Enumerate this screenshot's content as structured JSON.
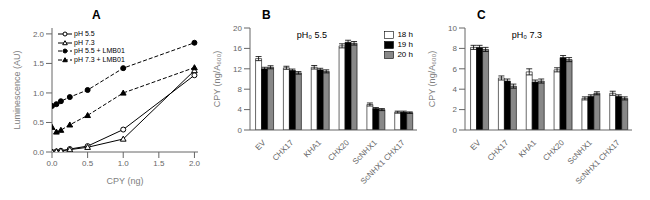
{
  "chart_data": [
    {
      "type": "line",
      "title": "A",
      "xlabel": "CPY (ng)",
      "ylabel": "Luminescence (AU)",
      "xlim": [
        0,
        2.05
      ],
      "ylim": [
        0,
        2.1
      ],
      "xticks": [
        {
          "value": 0,
          "label": "0.0"
        },
        0.5,
        {
          "value": 1,
          "label": "1.0"
        },
        1.5,
        {
          "value": 2,
          "label": "2.0"
        }
      ],
      "yticks": [
        {
          "value": 0,
          "label": "0.0"
        },
        0.5,
        {
          "value": 1,
          "label": "1.0"
        },
        1.5,
        {
          "value": 2,
          "label": "2.0"
        }
      ],
      "grid": false,
      "legend": "upper left",
      "x": [
        0.0,
        0.062,
        0.125,
        0.25,
        0.5,
        1.0,
        2.0
      ],
      "series": [
        {
          "name": "pH 5.5",
          "color": "black",
          "marker": "open_circle",
          "line_style": "solid",
          "values": [
            0.0,
            0.01,
            0.02,
            0.05,
            0.1,
            0.38,
            1.3
          ]
        },
        {
          "name": "pH 7.3",
          "color": "black",
          "marker": "open_triangle",
          "line_style": "solid",
          "values": [
            0.0,
            0.01,
            0.02,
            0.04,
            0.08,
            0.22,
            1.38
          ]
        },
        {
          "name": "pH 5.5 + LMB01",
          "color": "black",
          "marker": "filled_circle",
          "line_style": "dashed",
          "values": [
            0.78,
            0.81,
            0.86,
            0.93,
            1.05,
            1.42,
            1.85
          ]
        },
        {
          "name": "pH 7.3 + LMB01",
          "color": "black",
          "marker": "filled_triangle",
          "line_style": "dashed",
          "values": [
            0.42,
            0.34,
            0.37,
            0.46,
            0.62,
            1.0,
            1.43
          ]
        }
      ]
    },
    {
      "type": "bar",
      "title": "B",
      "annotations": [
        "pH₀ 5.5"
      ],
      "ylabel": "CPY (ng/A₆₀₀)",
      "ylim": [
        0,
        20
      ],
      "yticks": [
        0,
        4,
        8,
        12,
        16,
        20
      ],
      "grid": false,
      "legend": "upper right",
      "categories": [
        "EV",
        "CHX17",
        "KHA1",
        "CHX20",
        "ScNHX1",
        "ScNHX1 CHX17"
      ],
      "series": [
        {
          "name": "18 h",
          "color": "white",
          "values": [
            14.0,
            12.2,
            12.3,
            16.5,
            5.0,
            3.5
          ],
          "errors": [
            0.4,
            0.3,
            0.35,
            0.4,
            0.3,
            0.2
          ]
        },
        {
          "name": "19 h",
          "color": "black",
          "values": [
            12.0,
            11.7,
            11.8,
            17.2,
            4.2,
            3.5
          ],
          "errors": [
            0.3,
            0.25,
            0.3,
            0.4,
            0.2,
            0.2
          ]
        },
        {
          "name": "20 h",
          "color": "#888888",
          "values": [
            12.3,
            11.2,
            11.5,
            17.0,
            4.0,
            3.4
          ],
          "errors": [
            0.3,
            0.25,
            0.3,
            0.35,
            0.2,
            0.15
          ]
        }
      ]
    },
    {
      "type": "bar",
      "title": "C",
      "annotations": [
        "pH₀ 7.3"
      ],
      "ylabel": "CPY (ng/A₆₀₀)",
      "ylim": [
        0,
        10
      ],
      "yticks": [
        0,
        2,
        4,
        6,
        8,
        10
      ],
      "grid": false,
      "categories": [
        "EV",
        "CHX17",
        "KHA1",
        "CHX20",
        "ScNHX1",
        "ScNHX1 CHX17"
      ],
      "series": [
        {
          "name": "18 h",
          "color": "white",
          "values": [
            8.1,
            5.1,
            5.7,
            5.9,
            3.1,
            3.6
          ],
          "errors": [
            0.2,
            0.2,
            0.3,
            0.2,
            0.15,
            0.2
          ]
        },
        {
          "name": "19 h",
          "color": "black",
          "values": [
            8.1,
            4.8,
            4.7,
            7.1,
            3.3,
            3.3
          ],
          "errors": [
            0.2,
            0.2,
            0.2,
            0.2,
            0.15,
            0.15
          ]
        },
        {
          "name": "20 h",
          "color": "#888888",
          "values": [
            7.9,
            4.3,
            4.8,
            6.9,
            3.6,
            3.1
          ],
          "errors": [
            0.2,
            0.2,
            0.2,
            0.2,
            0.15,
            0.15
          ]
        }
      ]
    }
  ]
}
